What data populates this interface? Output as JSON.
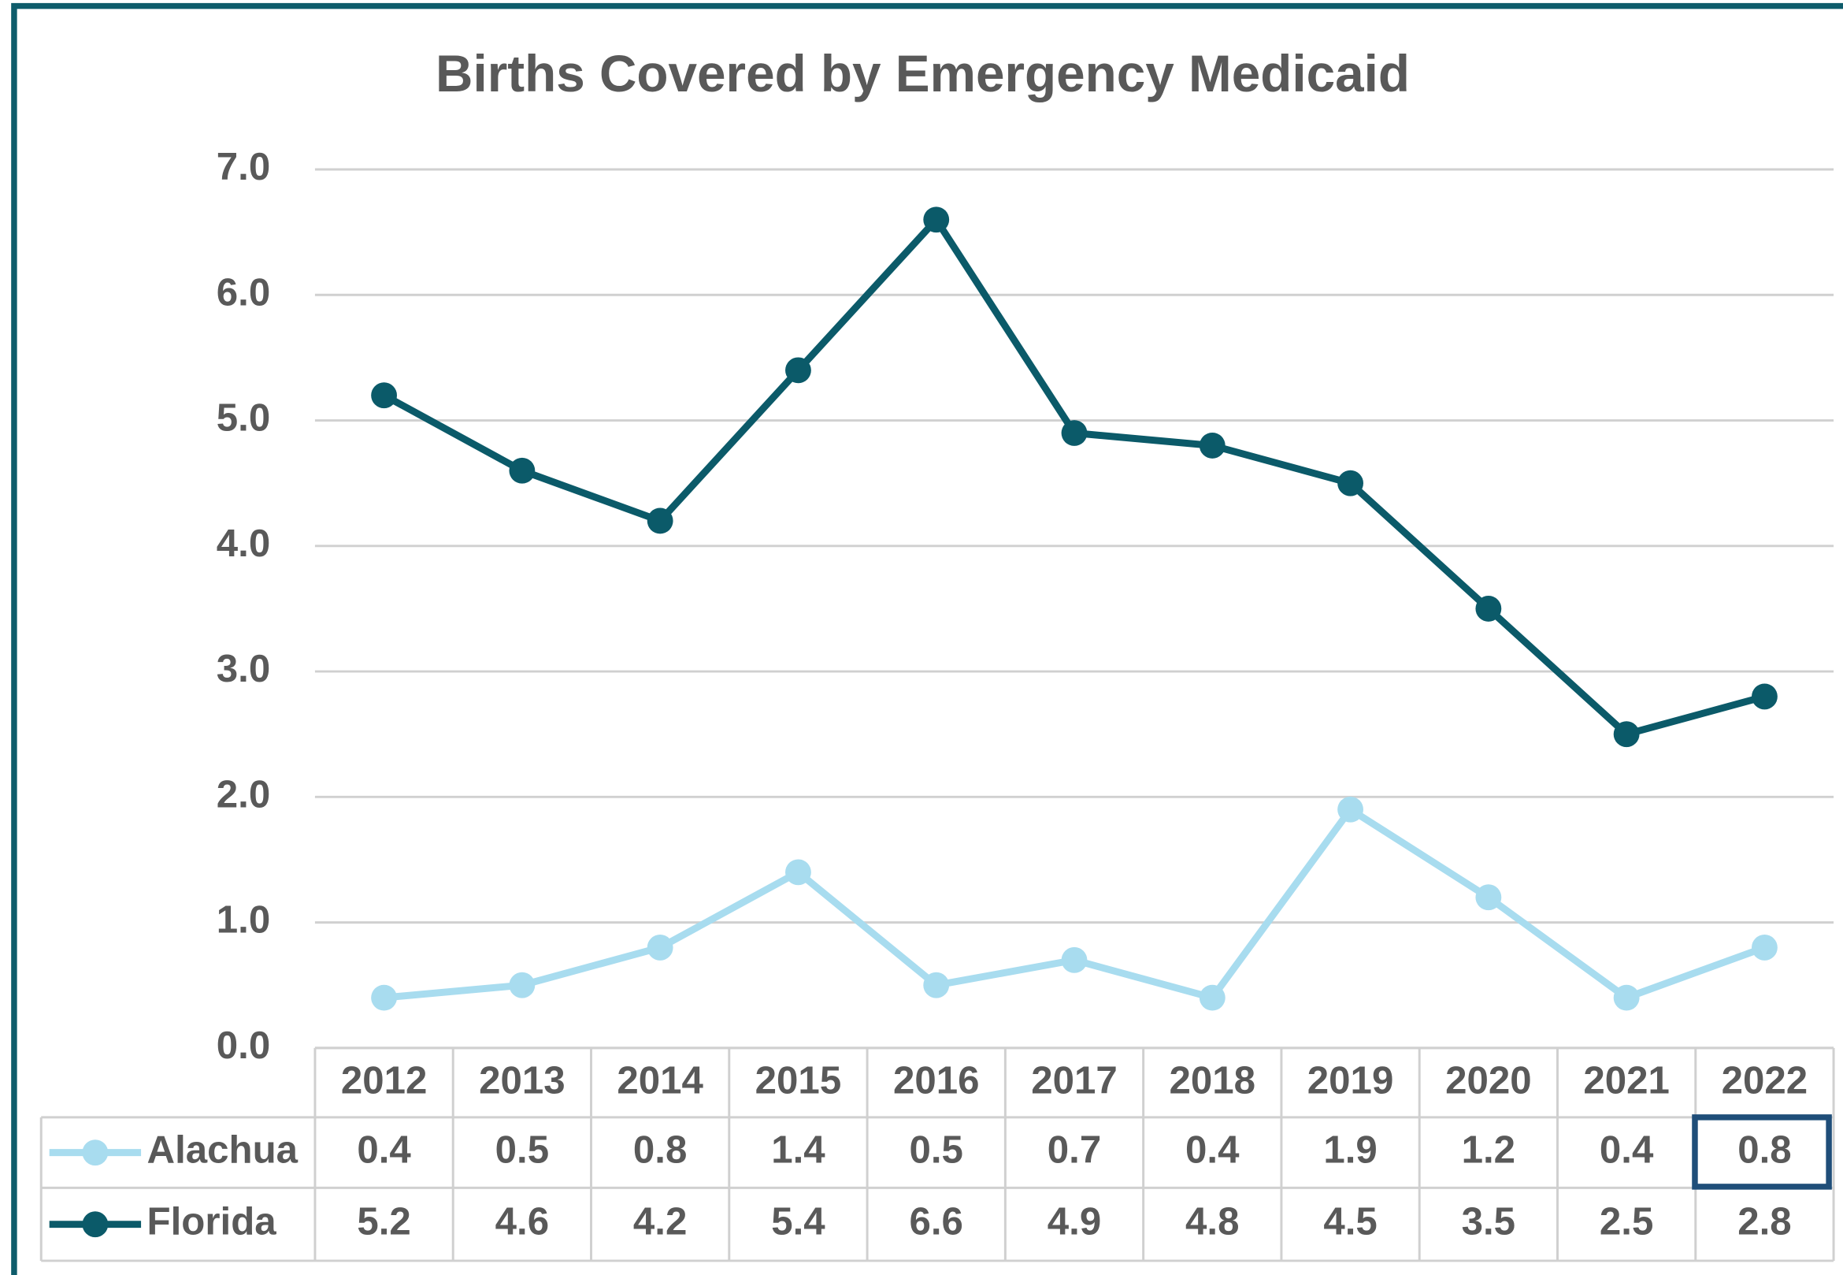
{
  "chart_data": {
    "type": "line",
    "title": "Births Covered by Emergency Medicaid",
    "categories": [
      "2012",
      "2013",
      "2014",
      "2015",
      "2016",
      "2017",
      "2018",
      "2019",
      "2020",
      "2021",
      "2022"
    ],
    "series": [
      {
        "name": "Alachua",
        "color": "#a8dcef",
        "values": [
          0.4,
          0.5,
          0.8,
          1.4,
          0.5,
          0.7,
          0.4,
          1.9,
          1.2,
          0.4,
          0.8
        ]
      },
      {
        "name": "Florida",
        "color": "#0b5a69",
        "values": [
          5.2,
          4.6,
          4.2,
          5.4,
          6.6,
          4.9,
          4.8,
          4.5,
          3.5,
          2.5,
          2.8
        ]
      }
    ],
    "ylim": [
      0,
      7
    ],
    "yticks": [
      {
        "value": 0,
        "label": "0.0"
      },
      {
        "value": 1,
        "label": "1.0"
      },
      {
        "value": 2,
        "label": "2.0"
      },
      {
        "value": 3,
        "label": "3.0"
      },
      {
        "value": 4,
        "label": "4.0"
      },
      {
        "value": 5,
        "label": "5.0"
      },
      {
        "value": 6,
        "label": "6.0"
      },
      {
        "value": 7,
        "label": "7.0"
      }
    ],
    "grid": true
  }
}
